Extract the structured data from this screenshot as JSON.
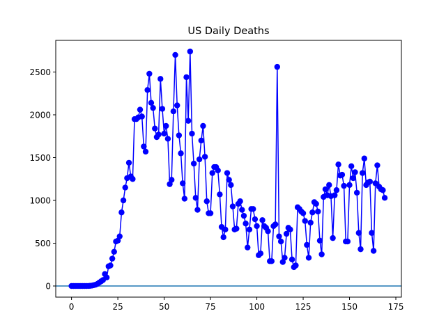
{
  "chart_data": {
    "type": "line",
    "title": "US Daily Deaths",
    "xlabel": "",
    "ylabel": "",
    "xlim": [
      -8.5,
      178
    ],
    "ylim": [
      -130,
      2870
    ],
    "x_ticks": [
      0,
      25,
      50,
      75,
      100,
      125,
      150,
      175
    ],
    "y_ticks": [
      0,
      500,
      1000,
      1500,
      2000,
      2500
    ],
    "grid": false,
    "legend": "none",
    "series": [
      {
        "color": "#0000ff",
        "marker": "circle",
        "values": [
          0,
          0,
          0,
          0,
          0,
          0,
          0,
          0,
          0,
          1,
          2,
          5,
          10,
          15,
          25,
          40,
          55,
          70,
          140,
          100,
          230,
          240,
          320,
          400,
          520,
          530,
          580,
          860,
          1000,
          1150,
          1260,
          1440,
          1280,
          1250,
          1950,
          1950,
          1970,
          2060,
          1980,
          1630,
          1570,
          2290,
          2480,
          2140,
          2080,
          1840,
          1740,
          1770,
          2420,
          2070,
          1780,
          1870,
          1720,
          1190,
          1240,
          2040,
          2700,
          2110,
          1760,
          1550,
          1200,
          1020,
          2440,
          1930,
          2740,
          1780,
          1430,
          1030,
          890,
          1480,
          1700,
          1870,
          1510,
          990,
          850,
          850,
          1320,
          1390,
          1390,
          1350,
          1070,
          690,
          570,
          660,
          1320,
          1240,
          1180,
          930,
          660,
          670,
          960,
          990,
          890,
          820,
          730,
          450,
          660,
          900,
          900,
          780,
          700,
          360,
          380,
          770,
          700,
          680,
          640,
          290,
          290,
          700,
          720,
          2560,
          580,
          520,
          280,
          330,
          610,
          680,
          660,
          310,
          220,
          240,
          920,
          900,
          870,
          850,
          760,
          480,
          330,
          740,
          860,
          980,
          960,
          870,
          530,
          370,
          1040,
          1130,
          1060,
          1180,
          1050,
          560,
          1060,
          1120,
          1420,
          1290,
          1300,
          1170,
          520,
          520,
          1180,
          1400,
          1260,
          1330,
          1090,
          620,
          430,
          1320,
          1490,
          1180,
          1210,
          1220,
          620,
          410,
          1200,
          1410,
          1160,
          1130,
          1120,
          1030
        ]
      }
    ],
    "reference_line": {
      "y": 0,
      "color": "#1f77b4"
    }
  }
}
